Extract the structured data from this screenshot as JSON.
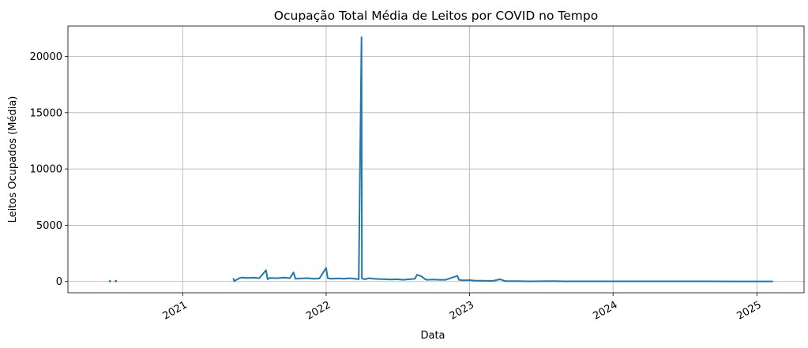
{
  "chart_data": {
    "type": "line",
    "title": "Ocupação Total Média de Leitos por COVID no Tempo",
    "xlabel": "Data",
    "ylabel": "Leitos Ocupados (Média)",
    "x_ticks": [
      "2021",
      "2022",
      "2023",
      "2024",
      "2025"
    ],
    "y_ticks": [
      "0",
      "5000",
      "10000",
      "15000",
      "20000"
    ],
    "xlim": [
      "2020-03-15",
      "2025-05-01"
    ],
    "ylim": [
      -1000,
      22700
    ],
    "grid": true,
    "color": "#1f77b4",
    "series": [
      {
        "x": [
          "2020-06-30",
          "2020-07-15",
          "2021-05-10",
          "2021-05-12",
          "2021-05-25",
          "2021-06-01",
          "2021-06-15",
          "2021-07-01",
          "2021-07-15",
          "2021-08-01",
          "2021-08-05",
          "2021-08-10",
          "2021-09-01",
          "2021-09-15",
          "2021-10-01",
          "2021-10-10",
          "2021-10-15",
          "2021-11-01",
          "2021-11-15",
          "2021-12-01",
          "2021-12-15",
          "2022-01-01",
          "2022-01-05",
          "2022-01-15",
          "2022-02-01",
          "2022-02-15",
          "2022-03-01",
          "2022-03-15",
          "2022-03-25",
          "2022-04-01",
          "2022-04-02",
          "2022-04-03",
          "2022-04-10",
          "2022-04-20",
          "2022-05-01",
          "2022-05-15",
          "2022-06-01",
          "2022-06-15",
          "2022-07-01",
          "2022-07-15",
          "2022-08-01",
          "2022-08-15",
          "2022-08-20",
          "2022-09-01",
          "2022-09-10",
          "2022-09-15",
          "2022-10-01",
          "2022-10-15",
          "2022-11-01",
          "2022-12-01",
          "2022-12-05",
          "2022-12-15",
          "2023-01-01",
          "2023-01-15",
          "2023-02-01",
          "2023-02-15",
          "2023-03-01",
          "2023-03-20",
          "2023-04-01",
          "2023-05-01",
          "2023-06-01",
          "2023-08-01",
          "2023-09-01",
          "2023-11-01",
          "2024-01-01",
          "2024-03-01",
          "2024-05-01",
          "2024-07-01",
          "2024-09-01",
          "2024-11-01",
          "2025-01-01",
          "2025-02-10"
        ],
        "y": [
          30,
          40,
          250,
          30,
          300,
          350,
          320,
          340,
          300,
          1000,
          200,
          320,
          300,
          350,
          300,
          800,
          250,
          280,
          300,
          250,
          280,
          1200,
          300,
          250,
          280,
          250,
          300,
          250,
          200,
          21700,
          300,
          250,
          200,
          300,
          250,
          220,
          200,
          180,
          200,
          150,
          200,
          250,
          600,
          450,
          200,
          150,
          180,
          150,
          150,
          500,
          150,
          100,
          120,
          80,
          70,
          60,
          50,
          200,
          40,
          30,
          20,
          30,
          20,
          20,
          20,
          20,
          15,
          15,
          15,
          10,
          10,
          10
        ]
      }
    ]
  }
}
